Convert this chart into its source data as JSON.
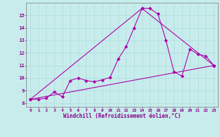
{
  "bg_color": "#c8ecec",
  "line_color": "#aa00aa",
  "grid_color": "#b0dede",
  "axis_color": "#880088",
  "xlabel": "Windchill (Refroidissement éolien,°C)",
  "xlim": [
    -0.5,
    23.5
  ],
  "ylim": [
    7.7,
    16.0
  ],
  "yticks": [
    8,
    9,
    10,
    11,
    12,
    13,
    14,
    15
  ],
  "xticks": [
    0,
    1,
    2,
    3,
    4,
    5,
    6,
    7,
    8,
    9,
    10,
    11,
    12,
    13,
    14,
    15,
    16,
    17,
    18,
    19,
    20,
    21,
    22,
    23
  ],
  "main_x": [
    0,
    1,
    2,
    3,
    4,
    5,
    6,
    7,
    8,
    9,
    10,
    11,
    12,
    13,
    14,
    15,
    16,
    17,
    18,
    19,
    20,
    21,
    22,
    23
  ],
  "main_y": [
    8.3,
    8.3,
    8.4,
    8.9,
    8.5,
    9.8,
    10.0,
    9.8,
    9.7,
    9.85,
    10.05,
    11.5,
    12.5,
    14.0,
    15.55,
    15.55,
    15.1,
    13.0,
    10.5,
    10.15,
    12.3,
    11.9,
    11.75,
    11.0
  ],
  "line1_x": [
    0,
    23
  ],
  "line1_y": [
    8.3,
    11.0
  ],
  "line2_x": [
    0,
    14,
    23
  ],
  "line2_y": [
    8.3,
    15.55,
    11.0
  ]
}
